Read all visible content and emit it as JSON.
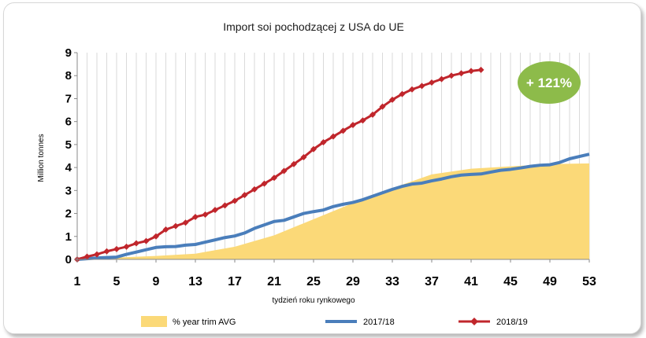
{
  "chart_data": {
    "type": "line",
    "title": "Import soi pochodzącej z USA do UE",
    "xlabel": "tydzień roku rynkowego",
    "ylabel": "Million tonnes",
    "xlim": [
      1,
      53
    ],
    "ylim": [
      0,
      9
    ],
    "x_ticks": [
      1,
      5,
      9,
      13,
      17,
      21,
      25,
      29,
      33,
      37,
      41,
      45,
      49,
      53
    ],
    "y_ticks": [
      0,
      1,
      2,
      3,
      4,
      5,
      6,
      7,
      8,
      9
    ],
    "grid": "vertical",
    "legend_position": "bottom",
    "annotation": "+ 121%",
    "colors": {
      "area": "#fbd978",
      "series_2017": "#4a7ebb",
      "series_2018": "#c0262c",
      "badge": "#8dbb4a"
    },
    "series": [
      {
        "name": "% year trim AVG",
        "type": "area",
        "x": [
          1,
          5,
          9,
          13,
          17,
          21,
          25,
          29,
          33,
          37,
          41,
          45,
          49,
          53
        ],
        "values": [
          0.0,
          0.08,
          0.15,
          0.25,
          0.55,
          1.05,
          1.75,
          2.45,
          3.1,
          3.7,
          3.95,
          4.05,
          4.15,
          4.18
        ]
      },
      {
        "name": "2017/18",
        "type": "line",
        "x": [
          1,
          2,
          3,
          4,
          5,
          6,
          7,
          8,
          9,
          10,
          11,
          12,
          13,
          14,
          15,
          16,
          17,
          18,
          19,
          20,
          21,
          22,
          23,
          24,
          25,
          26,
          27,
          28,
          29,
          30,
          31,
          32,
          33,
          34,
          35,
          36,
          37,
          38,
          39,
          40,
          41,
          42,
          43,
          44,
          45,
          46,
          47,
          48,
          49,
          50,
          51,
          52,
          53
        ],
        "values": [
          0.0,
          0.03,
          0.06,
          0.08,
          0.1,
          0.22,
          0.32,
          0.42,
          0.52,
          0.55,
          0.56,
          0.62,
          0.65,
          0.75,
          0.85,
          0.95,
          1.02,
          1.15,
          1.35,
          1.5,
          1.65,
          1.7,
          1.85,
          2.0,
          2.08,
          2.15,
          2.3,
          2.4,
          2.48,
          2.6,
          2.75,
          2.9,
          3.05,
          3.18,
          3.28,
          3.32,
          3.42,
          3.5,
          3.6,
          3.67,
          3.7,
          3.72,
          3.8,
          3.88,
          3.92,
          3.98,
          4.05,
          4.1,
          4.12,
          4.22,
          4.38,
          4.48,
          4.58
        ]
      },
      {
        "name": "2018/19",
        "type": "line",
        "x": [
          1,
          2,
          3,
          4,
          5,
          6,
          7,
          8,
          9,
          10,
          11,
          12,
          13,
          14,
          15,
          16,
          17,
          18,
          19,
          20,
          21,
          22,
          23,
          24,
          25,
          26,
          27,
          28,
          29,
          30,
          31,
          32,
          33,
          34,
          35,
          36,
          37,
          38,
          39,
          40,
          41,
          42
        ],
        "values": [
          0.0,
          0.12,
          0.22,
          0.35,
          0.45,
          0.55,
          0.7,
          0.8,
          1.0,
          1.3,
          1.45,
          1.6,
          1.85,
          1.95,
          2.15,
          2.35,
          2.55,
          2.8,
          3.05,
          3.3,
          3.55,
          3.85,
          4.15,
          4.45,
          4.8,
          5.1,
          5.35,
          5.6,
          5.85,
          6.05,
          6.3,
          6.65,
          6.95,
          7.2,
          7.4,
          7.55,
          7.7,
          7.85,
          8.0,
          8.1,
          8.2,
          8.25
        ]
      }
    ]
  }
}
